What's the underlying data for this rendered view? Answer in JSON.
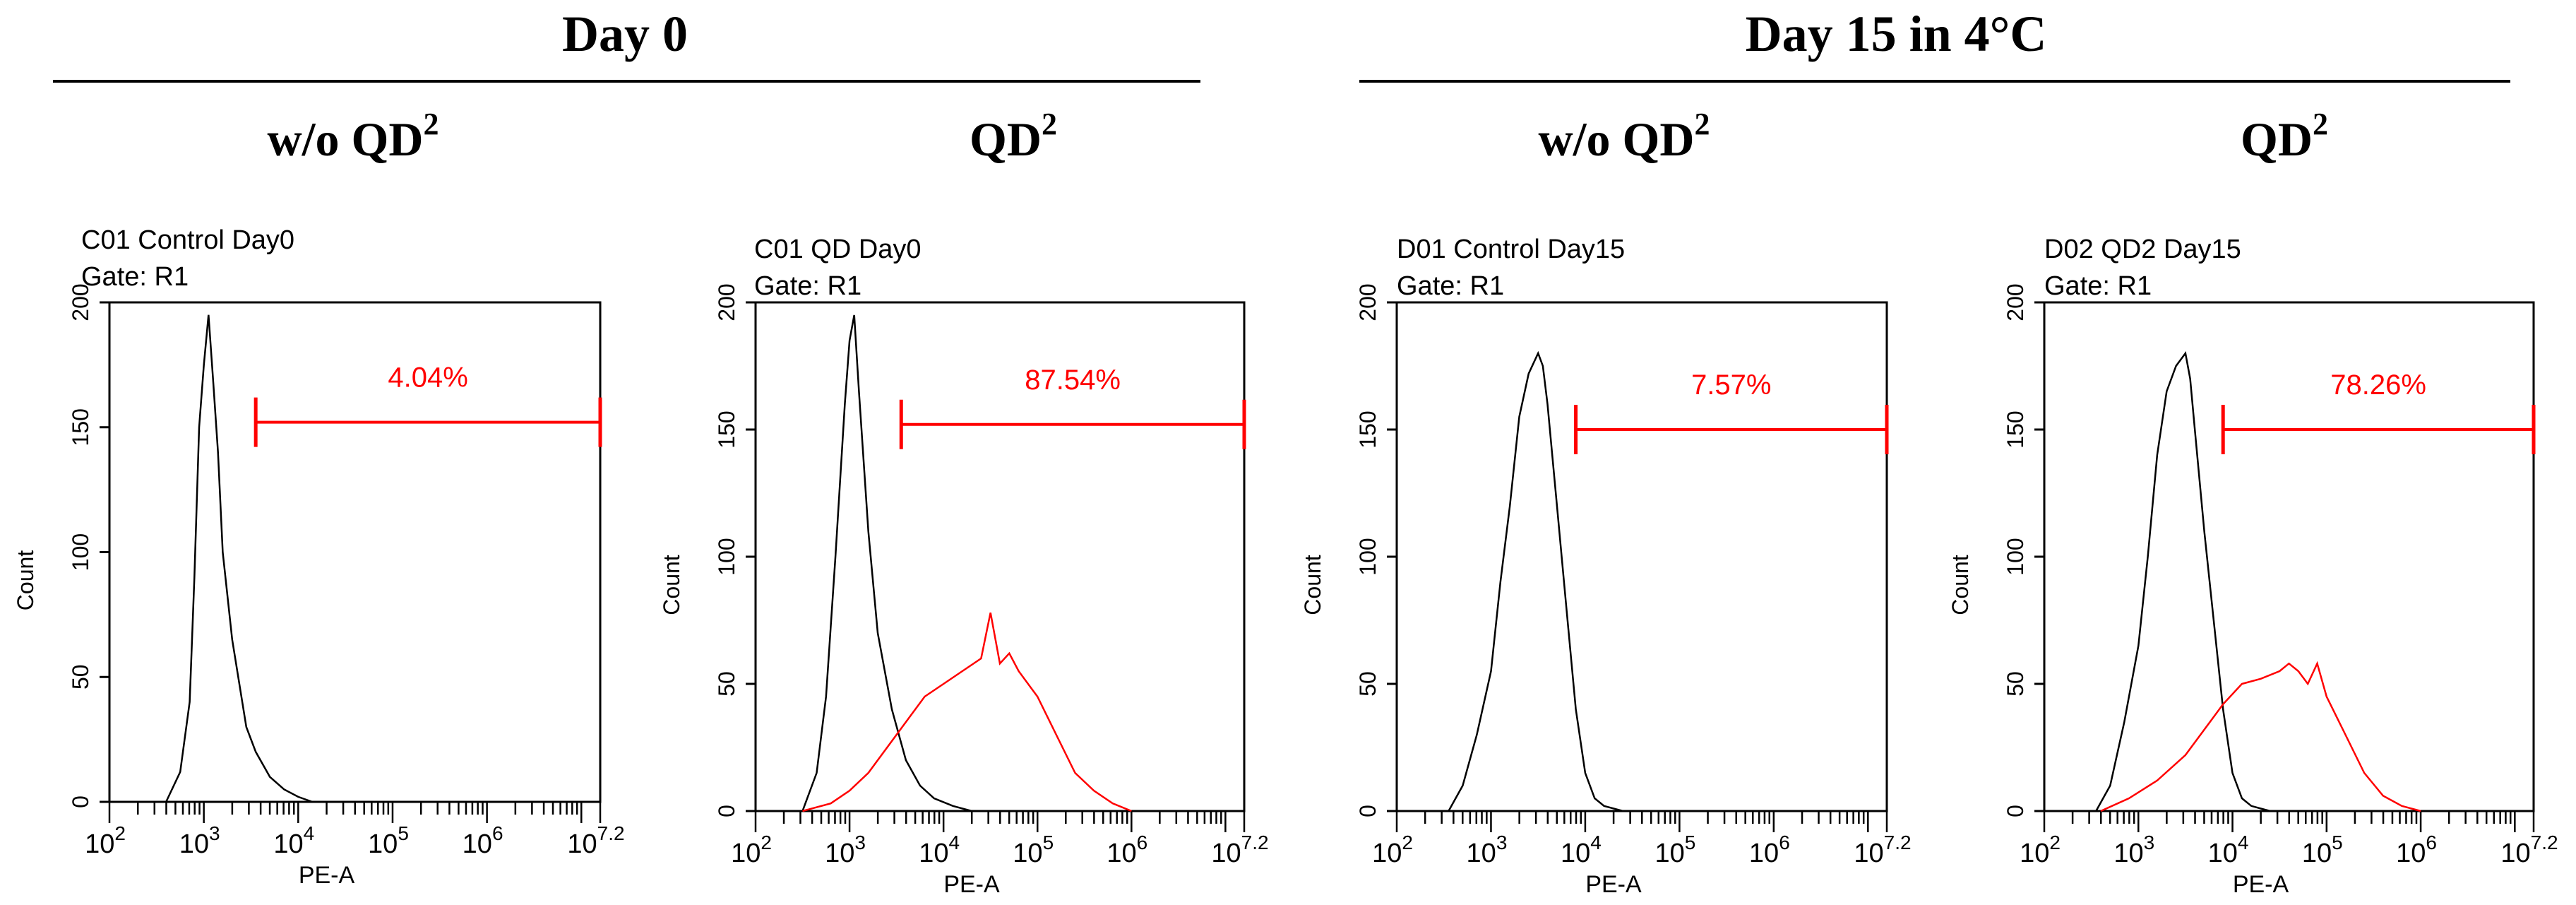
{
  "figure": {
    "groups": [
      {
        "title": "Day 0"
      },
      {
        "title": "Day 15 in 4°C"
      }
    ],
    "columns": [
      {
        "label": "w/o QD",
        "sup": "2"
      },
      {
        "label": "QD",
        "sup": "2"
      },
      {
        "label": "w/o QD",
        "sup": "2"
      },
      {
        "label": "QD",
        "sup": "2"
      }
    ]
  },
  "chart_data": [
    {
      "type": "histogram",
      "title": "C01 Control Day0",
      "gate": "Gate: R1",
      "xlabel": "PE-A",
      "ylabel": "Count",
      "xscale": "log10",
      "xlim": [
        2,
        7.2
      ],
      "ylim": [
        0,
        200
      ],
      "yticks": [
        "0",
        "50",
        "100",
        "150",
        "200"
      ],
      "xticks": [
        {
          "base": "10",
          "exp": "2"
        },
        {
          "base": "10",
          "exp": "3"
        },
        {
          "base": "10",
          "exp": "4"
        },
        {
          "base": "10",
          "exp": "5"
        },
        {
          "base": "10",
          "exp": "6"
        },
        {
          "base": "10",
          "exp": "7.2"
        }
      ],
      "marker": {
        "label": "4.04%",
        "from_log": 3.55,
        "to_log": 7.2,
        "y": 152
      },
      "series": [
        {
          "name": "control",
          "color": "#000000",
          "x_log": [
            2.6,
            2.75,
            2.85,
            2.9,
            2.95,
            3.0,
            3.05,
            3.1,
            3.15,
            3.2,
            3.3,
            3.45,
            3.55,
            3.7,
            3.85,
            4.0,
            4.15
          ],
          "y": [
            0,
            12,
            40,
            90,
            150,
            175,
            195,
            168,
            140,
            100,
            65,
            30,
            20,
            10,
            5,
            2,
            0
          ]
        }
      ]
    },
    {
      "type": "histogram",
      "title": "C01 QD Day0",
      "gate": "Gate: R1",
      "xlabel": "PE-A",
      "ylabel": "Count",
      "xscale": "log10",
      "xlim": [
        2,
        7.2
      ],
      "ylim": [
        0,
        200
      ],
      "yticks": [
        "0",
        "50",
        "100",
        "150",
        "200"
      ],
      "xticks": [
        {
          "base": "10",
          "exp": "2"
        },
        {
          "base": "10",
          "exp": "3"
        },
        {
          "base": "10",
          "exp": "4"
        },
        {
          "base": "10",
          "exp": "5"
        },
        {
          "base": "10",
          "exp": "6"
        },
        {
          "base": "10",
          "exp": "7.2"
        }
      ],
      "marker": {
        "label": "87.54%",
        "from_log": 3.55,
        "to_log": 7.2,
        "y": 152
      },
      "series": [
        {
          "name": "control",
          "color": "#000000",
          "x_log": [
            2.5,
            2.65,
            2.75,
            2.85,
            2.95,
            3.0,
            3.05,
            3.1,
            3.2,
            3.3,
            3.45,
            3.6,
            3.75,
            3.9,
            4.1,
            4.3
          ],
          "y": [
            0,
            15,
            45,
            100,
            160,
            185,
            195,
            165,
            110,
            70,
            40,
            20,
            10,
            5,
            2,
            0
          ]
        },
        {
          "name": "QD",
          "color": "#ff0000",
          "x_log": [
            2.5,
            2.8,
            3.0,
            3.2,
            3.4,
            3.6,
            3.8,
            4.0,
            4.2,
            4.4,
            4.5,
            4.6,
            4.7,
            4.8,
            5.0,
            5.2,
            5.4,
            5.6,
            5.8,
            6.0
          ],
          "y": [
            0,
            3,
            8,
            15,
            25,
            35,
            45,
            50,
            55,
            60,
            78,
            58,
            62,
            55,
            45,
            30,
            15,
            8,
            3,
            0
          ]
        }
      ]
    },
    {
      "type": "histogram",
      "title": "D01 Control Day15",
      "gate": "Gate: R1",
      "xlabel": "PE-A",
      "ylabel": "Count",
      "xscale": "log10",
      "xlim": [
        2,
        7.2
      ],
      "ylim": [
        0,
        200
      ],
      "yticks": [
        "0",
        "50",
        "100",
        "150",
        "200"
      ],
      "xticks": [
        {
          "base": "10",
          "exp": "2"
        },
        {
          "base": "10",
          "exp": "3"
        },
        {
          "base": "10",
          "exp": "4"
        },
        {
          "base": "10",
          "exp": "5"
        },
        {
          "base": "10",
          "exp": "6"
        },
        {
          "base": "10",
          "exp": "7.2"
        }
      ],
      "marker": {
        "label": "7.57%",
        "from_log": 3.9,
        "to_log": 7.2,
        "y": 150
      },
      "series": [
        {
          "name": "control",
          "color": "#000000",
          "x_log": [
            2.55,
            2.7,
            2.85,
            3.0,
            3.1,
            3.2,
            3.3,
            3.4,
            3.5,
            3.55,
            3.6,
            3.7,
            3.8,
            3.9,
            4.0,
            4.1,
            4.2,
            4.4
          ],
          "y": [
            0,
            10,
            30,
            55,
            90,
            120,
            155,
            172,
            180,
            175,
            160,
            120,
            80,
            40,
            15,
            5,
            2,
            0
          ]
        }
      ]
    },
    {
      "type": "histogram",
      "title": "D02 QD2 Day15",
      "gate": "Gate: R1",
      "xlabel": "PE-A",
      "ylabel": "Count",
      "xscale": "log10",
      "xlim": [
        2,
        7.2
      ],
      "ylim": [
        0,
        200
      ],
      "yticks": [
        "0",
        "50",
        "100",
        "150",
        "200"
      ],
      "xticks": [
        {
          "base": "10",
          "exp": "2"
        },
        {
          "base": "10",
          "exp": "3"
        },
        {
          "base": "10",
          "exp": "4"
        },
        {
          "base": "10",
          "exp": "5"
        },
        {
          "base": "10",
          "exp": "6"
        },
        {
          "base": "10",
          "exp": "7.2"
        }
      ],
      "marker": {
        "label": "78.26%",
        "from_log": 3.9,
        "to_log": 7.2,
        "y": 150
      },
      "series": [
        {
          "name": "control",
          "color": "#000000",
          "x_log": [
            2.55,
            2.7,
            2.85,
            3.0,
            3.1,
            3.2,
            3.3,
            3.4,
            3.5,
            3.55,
            3.6,
            3.7,
            3.8,
            3.9,
            4.0,
            4.1,
            4.2,
            4.4
          ],
          "y": [
            0,
            10,
            35,
            65,
            100,
            140,
            165,
            175,
            180,
            170,
            150,
            110,
            75,
            40,
            15,
            5,
            2,
            0
          ]
        },
        {
          "name": "QD",
          "color": "#ff0000",
          "x_log": [
            2.6,
            2.9,
            3.2,
            3.5,
            3.7,
            3.9,
            4.1,
            4.3,
            4.5,
            4.6,
            4.7,
            4.8,
            4.9,
            5.0,
            5.2,
            5.4,
            5.6,
            5.8,
            6.0
          ],
          "y": [
            0,
            5,
            12,
            22,
            32,
            42,
            50,
            52,
            55,
            58,
            55,
            50,
            58,
            45,
            30,
            15,
            6,
            2,
            0
          ]
        }
      ]
    }
  ]
}
